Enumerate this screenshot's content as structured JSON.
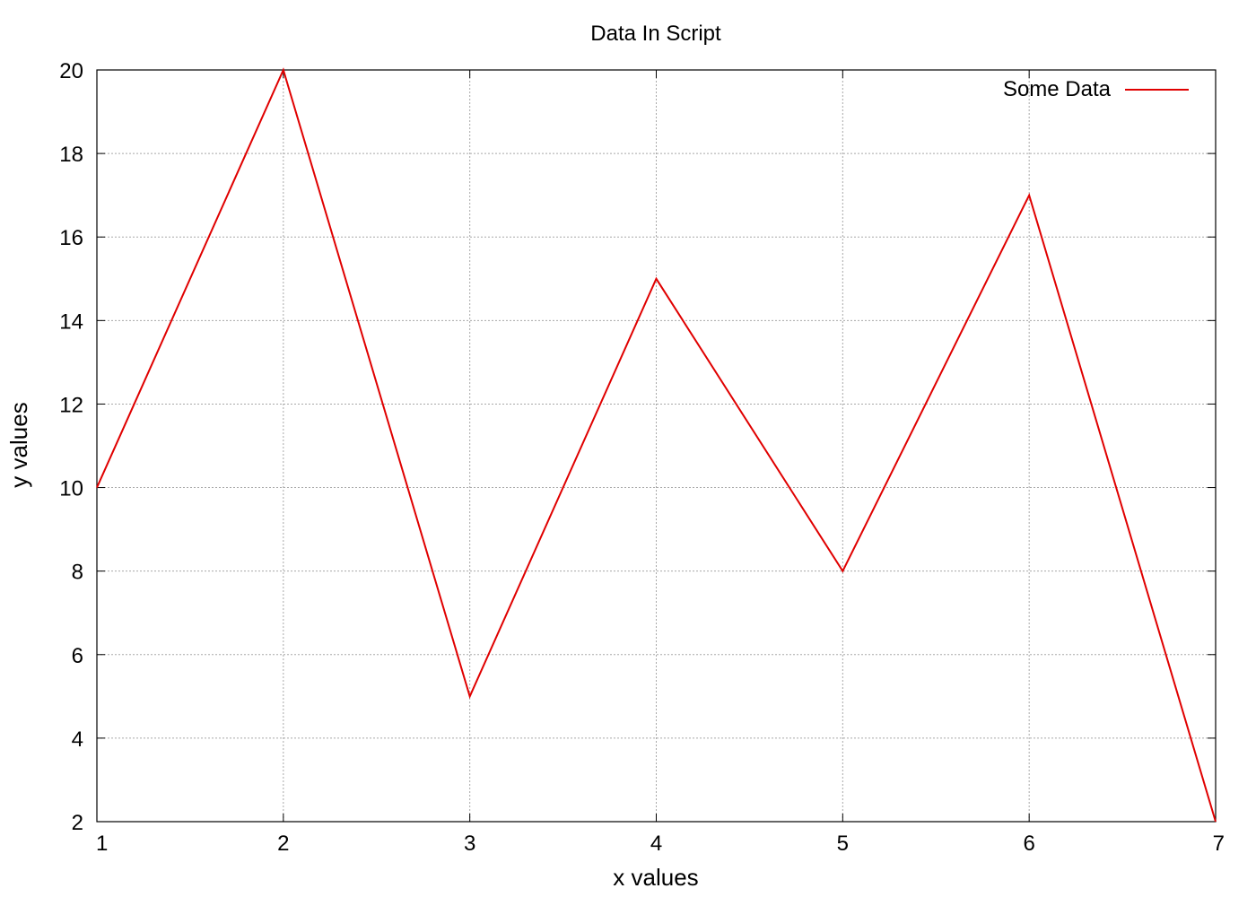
{
  "chart_data": {
    "type": "line",
    "title": "Data In Script",
    "xlabel": "x values",
    "ylabel": "y values",
    "xlim": [
      1,
      7
    ],
    "ylim": [
      2,
      20
    ],
    "xticks": [
      1,
      2,
      3,
      4,
      5,
      6,
      7
    ],
    "yticks": [
      2,
      4,
      6,
      8,
      10,
      12,
      14,
      16,
      18,
      20
    ],
    "grid": true,
    "legend_position": "top-right",
    "series": [
      {
        "name": "Some Data",
        "color": "#e00000",
        "x": [
          1,
          2,
          3,
          4,
          5,
          6,
          7
        ],
        "y": [
          10,
          20,
          5,
          15,
          8,
          17,
          2
        ]
      }
    ]
  }
}
